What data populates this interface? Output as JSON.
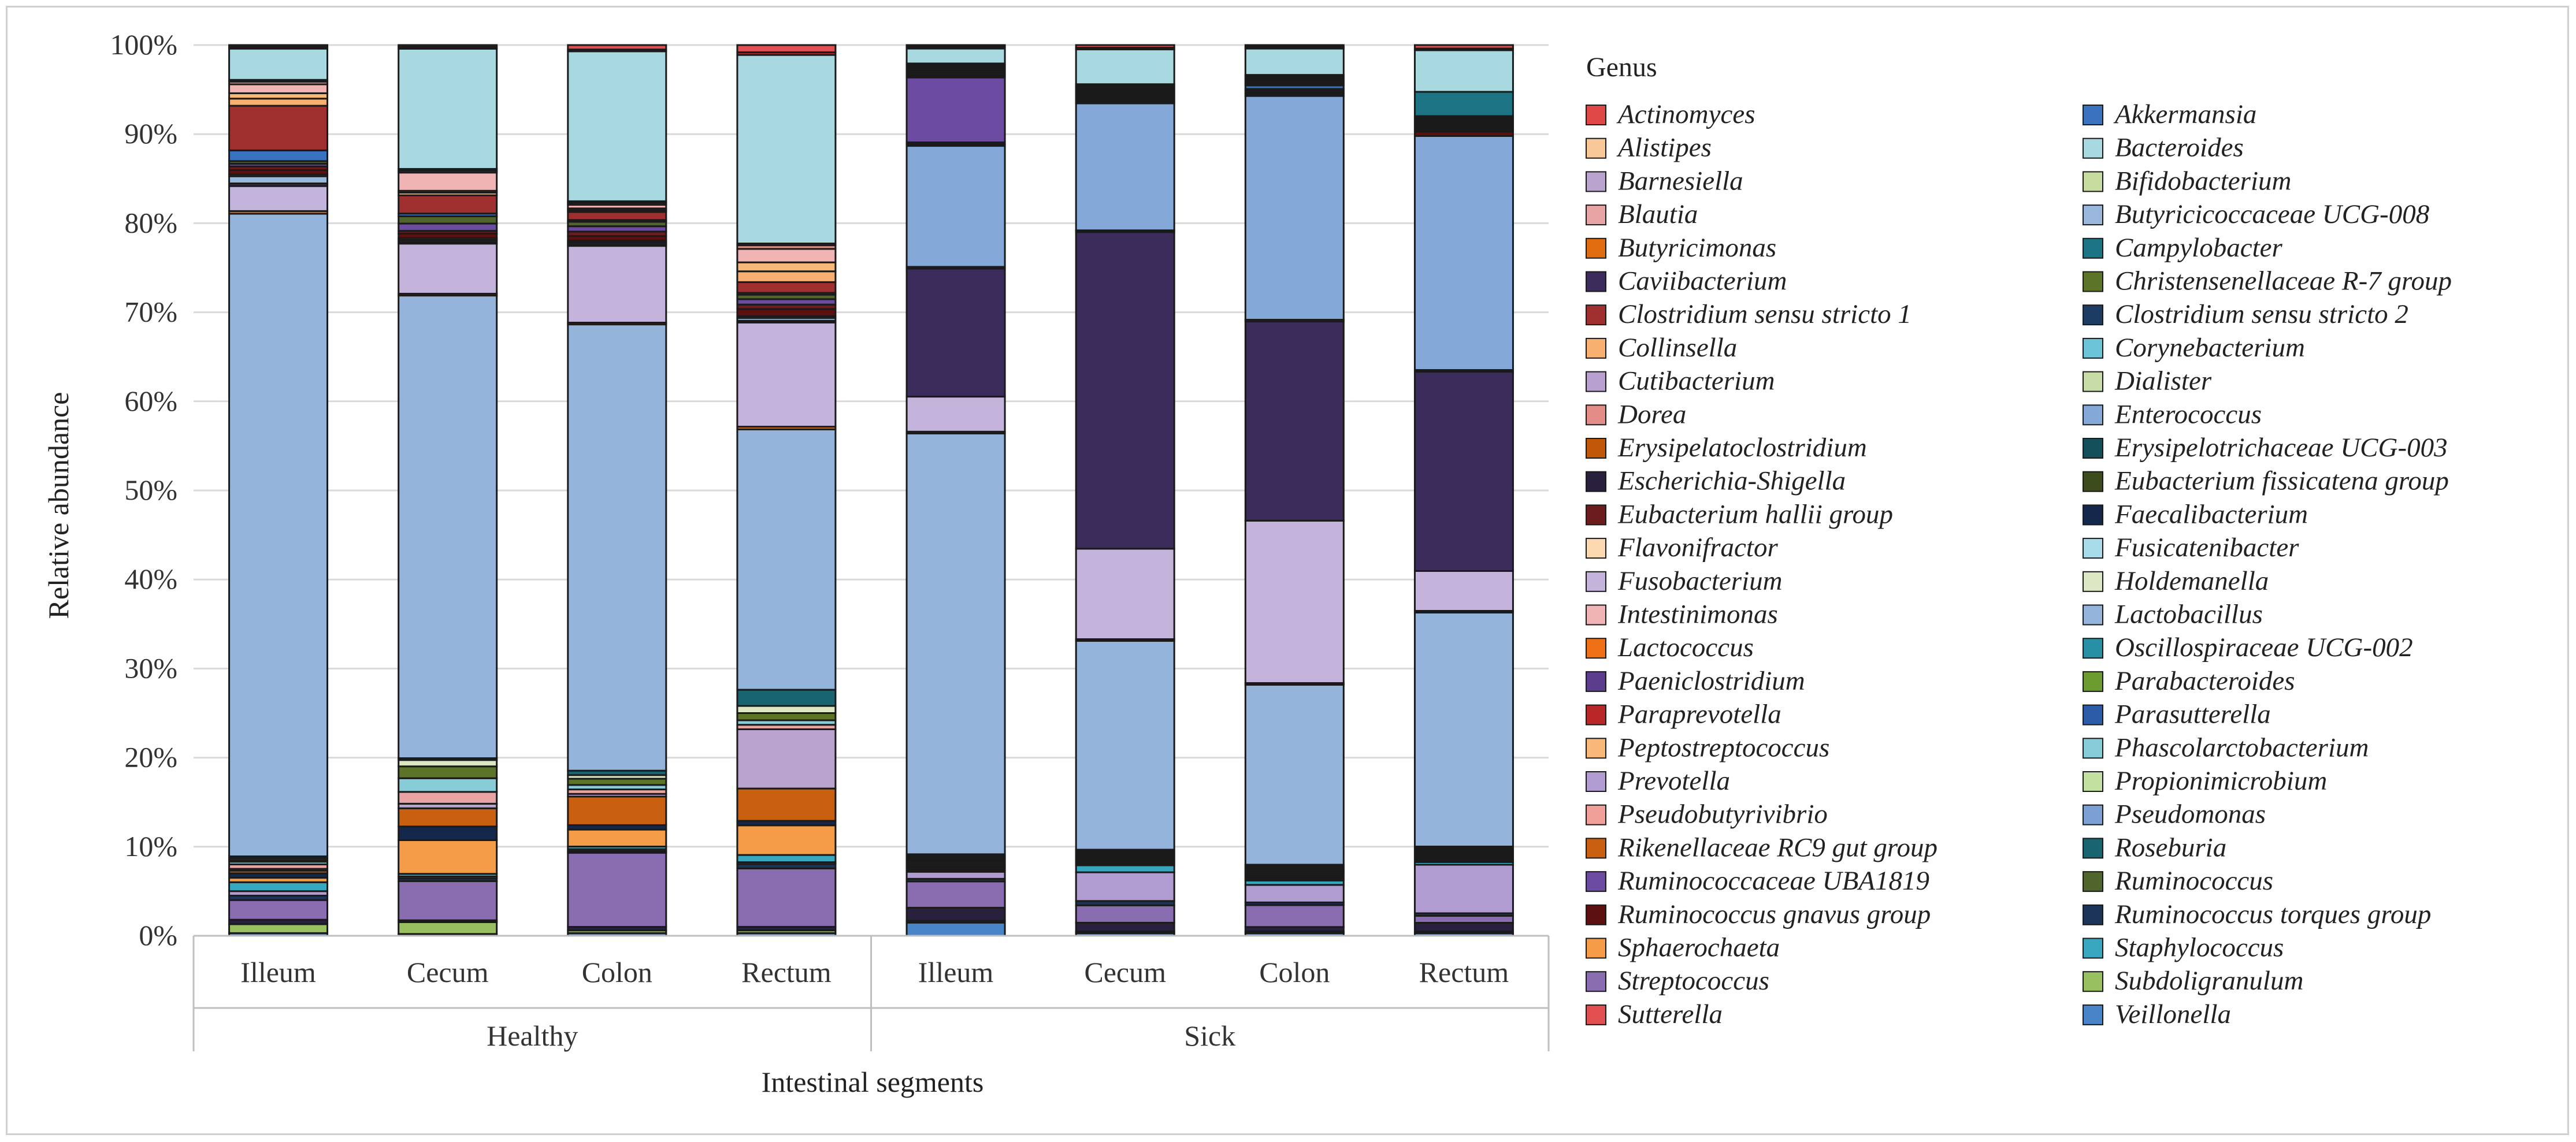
{
  "chart_data": {
    "type": "stacked-bar-100",
    "ylabel": "Relative abundance",
    "xlabel": "Intestinal segments",
    "ylim": [
      0,
      100
    ],
    "yticks": [
      "0%",
      "10%",
      "20%",
      "30%",
      "40%",
      "50%",
      "60%",
      "70%",
      "80%",
      "90%",
      "100%"
    ],
    "groups": [
      "Healthy",
      "Sick"
    ],
    "categories": [
      "Illeum",
      "Cecum",
      "Colon",
      "Rectum",
      "Illeum",
      "Cecum",
      "Colon",
      "Rectum"
    ],
    "legend_title": "Genus",
    "legend_position": "right",
    "genera": [
      {
        "name": "Actinomyces",
        "color": "#e04848"
      },
      {
        "name": "Akkermansia",
        "color": "#3a72c0"
      },
      {
        "name": "Alistipes",
        "color": "#f8c898"
      },
      {
        "name": "Bacteroides",
        "color": "#a8d8e0"
      },
      {
        "name": "Barnesiella",
        "color": "#b8a4cc"
      },
      {
        "name": "Bifidobacterium",
        "color": "#c8dca0"
      },
      {
        "name": "Blautia",
        "color": "#e8a4a4"
      },
      {
        "name": "Butyricicoccaceae UCG-008",
        "color": "#9ab8dc"
      },
      {
        "name": "Butyricimonas",
        "color": "#e06c10"
      },
      {
        "name": "Campylobacter",
        "color": "#1c7484"
      },
      {
        "name": "Caviibacterium",
        "color": "#3c2c5c"
      },
      {
        "name": "Christensenellaceae R-7 group",
        "color": "#5c7428"
      },
      {
        "name": "Clostridium sensu stricto 1",
        "color": "#a03030"
      },
      {
        "name": "Clostridium sensu stricto 2",
        "color": "#1c3c64"
      },
      {
        "name": "Collinsella",
        "color": "#f8b070"
      },
      {
        "name": "Corynebacterium",
        "color": "#6cc4d8"
      },
      {
        "name": "Cutibacterium",
        "color": "#b8a0d0"
      },
      {
        "name": "Dialister",
        "color": "#c8dca8"
      },
      {
        "name": "Dorea",
        "color": "#e48c88"
      },
      {
        "name": "Enterococcus",
        "color": "#84a8d8"
      },
      {
        "name": "Erysipelatoclostridium",
        "color": "#c05808"
      },
      {
        "name": "Erysipelotrichaceae UCG-003",
        "color": "#14505c"
      },
      {
        "name": "Escherichia-Shigella",
        "color": "#28203c"
      },
      {
        "name": "Eubacterium fissicatena group",
        "color": "#3c4c1c"
      },
      {
        "name": "Eubacterium hallii group",
        "color": "#6c1c1c"
      },
      {
        "name": "Faecalibacterium",
        "color": "#14284c"
      },
      {
        "name": "Flavonifractor",
        "color": "#fcd8b0"
      },
      {
        "name": "Fusicatenibacter",
        "color": "#a8dce8"
      },
      {
        "name": "Fusobacterium",
        "color": "#c4b4dc"
      },
      {
        "name": "Holdemanella",
        "color": "#dce8c4"
      },
      {
        "name": "Intestinimonas",
        "color": "#f0b4b4"
      },
      {
        "name": "Lactobacillus",
        "color": "#94b4dc"
      },
      {
        "name": "Lactococcus",
        "color": "#f07018"
      },
      {
        "name": "Oscillospiraceae UCG-002",
        "color": "#2890a4"
      },
      {
        "name": "Paeniclostridium",
        "color": "#5c3c8c"
      },
      {
        "name": "Parabacteroides",
        "color": "#6c9c30"
      },
      {
        "name": "Paraprevotella",
        "color": "#b82828"
      },
      {
        "name": "Parasutterella",
        "color": "#2c5ca8"
      },
      {
        "name": "Peptostreptococcus",
        "color": "#f8b878"
      },
      {
        "name": "Phascolarctobacterium",
        "color": "#88ccd8"
      },
      {
        "name": "Prevotella",
        "color": "#b09cd0"
      },
      {
        "name": "Propionimicrobium",
        "color": "#c4e0a0"
      },
      {
        "name": "Pseudobutyrivibrio",
        "color": "#f0a098"
      },
      {
        "name": "Pseudomonas",
        "color": "#7ca0d4"
      },
      {
        "name": "Rikenellaceae RC9 gut group",
        "color": "#c86010"
      },
      {
        "name": "Roseburia",
        "color": "#186470"
      },
      {
        "name": "Ruminococcaceae UBA1819",
        "color": "#6c4ca0"
      },
      {
        "name": "Ruminococcus",
        "color": "#50642c"
      },
      {
        "name": "Ruminococcus gnavus group",
        "color": "#5c1010"
      },
      {
        "name": "Ruminococcus torques group",
        "color": "#1c3458"
      },
      {
        "name": "Sphaerochaeta",
        "color": "#f49c48"
      },
      {
        "name": "Staphylococcus",
        "color": "#38a8c0"
      },
      {
        "name": "Streptococcus",
        "color": "#8a6cb0"
      },
      {
        "name": "Subdoligranulum",
        "color": "#98c060"
      },
      {
        "name": "Sutterella",
        "color": "#e05050"
      },
      {
        "name": "Veillonella",
        "color": "#4a84c8"
      }
    ],
    "series": [
      {
        "name": "Veillonella",
        "values": [
          0.3,
          0.2,
          0.3,
          0.3,
          1.5,
          0.3,
          0.3,
          0.3
        ]
      },
      {
        "name": "Subdoligranulum",
        "values": [
          1.0,
          1.3,
          0.3,
          0.3,
          0.2,
          0.2,
          0.2,
          0.2
        ]
      },
      {
        "name": "Escherichia-Shigella",
        "values": [
          0.5,
          0.2,
          0.4,
          0.4,
          1.5,
          1.0,
          0.5,
          1.0
        ]
      },
      {
        "name": "Streptococcus",
        "values": [
          2.2,
          4.3,
          8.3,
          6.5,
          3.0,
          2.0,
          2.5,
          0.8
        ]
      },
      {
        "name": "Ruminococcus torques group",
        "values": [
          0.5,
          0.3,
          0.2,
          0.5,
          0.3,
          0.5,
          0.3,
          0.3
        ]
      },
      {
        "name": "Prevotella",
        "values": [
          0.5,
          0.2,
          0.2,
          0.2,
          0.8,
          3.3,
          2.0,
          5.6
        ]
      },
      {
        "name": "Staphylococcus",
        "values": [
          1.0,
          0.3,
          0.3,
          0.8,
          0.2,
          0.8,
          0.5,
          0.3
        ]
      },
      {
        "name": "Sphaerochaeta",
        "values": [
          0.5,
          3.7,
          1.9,
          3.3,
          0.2,
          0.2,
          0.2,
          0.2
        ]
      },
      {
        "name": "Faecalibacterium",
        "values": [
          0.5,
          1.5,
          0.5,
          0.5,
          0.2,
          0.2,
          0.2,
          0.2
        ]
      },
      {
        "name": "Rikenellaceae RC9 gut group",
        "values": [
          0.3,
          2.0,
          3.2,
          3.6,
          0.2,
          0.2,
          0.2,
          0.2
        ]
      },
      {
        "name": "Barnesiella",
        "values": [
          0.2,
          0.5,
          0.3,
          6.6,
          0.2,
          0.2,
          0.2,
          0.2
        ]
      },
      {
        "name": "Blautia",
        "values": [
          0.5,
          1.3,
          0.5,
          0.5,
          0.2,
          0.2,
          0.2,
          0.2
        ]
      },
      {
        "name": "Phascolarctobacterium",
        "values": [
          0.3,
          1.5,
          0.5,
          0.5,
          0.2,
          0.2,
          0.2,
          0.2
        ]
      },
      {
        "name": "Christensenellaceae R-7 group",
        "values": [
          0.2,
          1.3,
          0.7,
          0.8,
          0.2,
          0.2,
          0.2,
          0.2
        ]
      },
      {
        "name": "Holdemanella",
        "values": [
          0.2,
          0.7,
          0.4,
          0.8,
          0.2,
          0.2,
          0.2,
          0.2
        ]
      },
      {
        "name": "Roseburia",
        "values": [
          0.2,
          0.2,
          0.5,
          1.8,
          0.2,
          0.2,
          0.2,
          0.2
        ]
      },
      {
        "name": "Lactobacillus",
        "values": [
          72.0,
          50.8,
          50.0,
          29.0,
          48.0,
          24.0,
          20.5,
          27.0
        ]
      },
      {
        "name": "Lactococcus",
        "values": [
          0.3,
          0.2,
          0.2,
          0.3,
          0.2,
          0.2,
          0.2,
          0.2
        ]
      },
      {
        "name": "Fusobacterium",
        "values": [
          2.8,
          5.5,
          8.6,
          11.6,
          4.0,
          10.4,
          18.5,
          4.6
        ]
      },
      {
        "name": "Caviibacterium",
        "values": [
          0.3,
          0.2,
          0.2,
          0.2,
          14.6,
          36.4,
          22.7,
          23.0
        ]
      },
      {
        "name": "Butyricicoccaceae UCG-008",
        "values": [
          0.8,
          0.2,
          0.2,
          0.3,
          0.2,
          0.2,
          0.2,
          0.2
        ]
      },
      {
        "name": "Enterococcus",
        "values": [
          0.2,
          0.2,
          0.2,
          0.2,
          13.8,
          14.6,
          25.5,
          27.0
        ]
      },
      {
        "name": "Ruminococcus gnavus group",
        "values": [
          0.5,
          0.5,
          0.5,
          0.8,
          0.2,
          0.2,
          0.2,
          0.5
        ]
      },
      {
        "name": "Eubacterium hallii group",
        "values": [
          0.4,
          0.3,
          0.5,
          0.5,
          0.2,
          0.2,
          0.2,
          0.2
        ]
      },
      {
        "name": "Ruminococcaceae UBA1819",
        "values": [
          0.3,
          0.8,
          0.6,
          0.6,
          7.4,
          0.2,
          0.2,
          0.2
        ]
      },
      {
        "name": "Ruminococcus",
        "values": [
          0.3,
          0.8,
          0.5,
          0.5,
          0.2,
          0.2,
          0.2,
          0.2
        ]
      },
      {
        "name": "Akkermansia",
        "values": [
          1.2,
          0.3,
          0.2,
          0.2,
          0.2,
          0.2,
          0.4,
          0.2
        ]
      },
      {
        "name": "Clostridium sensu stricto 1",
        "values": [
          5.0,
          2.0,
          0.9,
          1.2,
          0.2,
          0.2,
          0.2,
          0.2
        ]
      },
      {
        "name": "Collinsella",
        "values": [
          0.8,
          0.3,
          0.2,
          1.2,
          0.2,
          0.2,
          0.2,
          0.2
        ]
      },
      {
        "name": "Peptostreptococcus",
        "values": [
          0.6,
          0.2,
          0.2,
          1.0,
          0.2,
          0.2,
          0.2,
          0.2
        ]
      },
      {
        "name": "Intestinimonas",
        "values": [
          1.0,
          2.0,
          0.4,
          1.5,
          0.2,
          0.2,
          0.2,
          0.2
        ]
      },
      {
        "name": "Dorea",
        "values": [
          0.3,
          0.2,
          0.2,
          0.4,
          0.2,
          0.2,
          0.2,
          0.2
        ]
      },
      {
        "name": "Campylobacter",
        "values": [
          0.2,
          0.2,
          0.2,
          0.2,
          0.2,
          0.2,
          0.2,
          2.8
        ]
      },
      {
        "name": "Bacteroides",
        "values": [
          3.5,
          13.2,
          16.8,
          21.0,
          1.7,
          4.0,
          3.0,
          4.8
        ]
      },
      {
        "name": "Paraprevotella",
        "values": [
          0.2,
          0.2,
          0.2,
          0.3,
          0.2,
          0.2,
          0.2,
          0.2
        ]
      },
      {
        "name": "Sutterella",
        "values": [
          0.2,
          0.2,
          0.5,
          0.8,
          0.2,
          0.3,
          0.2,
          0.4
        ]
      }
    ]
  }
}
